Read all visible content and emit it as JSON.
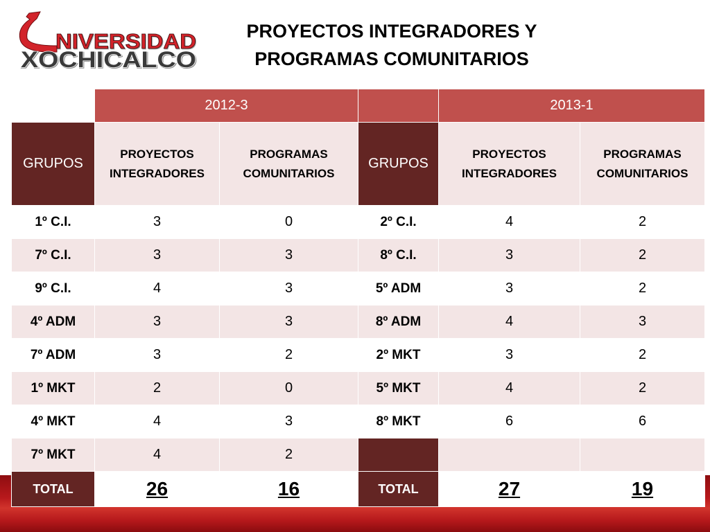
{
  "logo": {
    "line1": "NIVERSIDAD",
    "line2": "XOCHICALCO"
  },
  "title": {
    "line1": "PROYECTOS INTEGRADORES Y",
    "line2": "PROGRAMAS COMUNITARIOS"
  },
  "colors": {
    "header_red": "#c0504d",
    "group_maroon": "#632523",
    "band_pink": "#f3e5e5",
    "logo_red": "#d2232a"
  },
  "headers": {
    "groups": "GRUPOS",
    "projects": "PROYECTOS INTEGRADORES",
    "programs": "PROGRAMAS COMUNITARIOS"
  },
  "periods": [
    {
      "label": "2012-3",
      "groups": [
        {
          "name": "1º C.I.",
          "proyectos": 3,
          "programas": 0
        },
        {
          "name": "7º C.I.",
          "proyectos": 3,
          "programas": 3
        },
        {
          "name": "9º C.I.",
          "proyectos": 4,
          "programas": 3
        },
        {
          "name": "4º ADM",
          "proyectos": 3,
          "programas": 3
        },
        {
          "name": "7º ADM",
          "proyectos": 3,
          "programas": 2
        },
        {
          "name": "1º MKT",
          "proyectos": 2,
          "programas": 0
        },
        {
          "name": "4º MKT",
          "proyectos": 4,
          "programas": 3
        },
        {
          "name": "7º MKT",
          "proyectos": 4,
          "programas": 2
        }
      ],
      "total": {
        "label": "TOTAL",
        "proyectos": 26,
        "programas": 16
      }
    },
    {
      "label": "2013-1",
      "groups": [
        {
          "name": "2º C.I.",
          "proyectos": 4,
          "programas": 2
        },
        {
          "name": "8º C.I.",
          "proyectos": 3,
          "programas": 2
        },
        {
          "name": "5º ADM",
          "proyectos": 3,
          "programas": 2
        },
        {
          "name": "8º ADM",
          "proyectos": 4,
          "programas": 3
        },
        {
          "name": "2º MKT",
          "proyectos": 3,
          "programas": 2
        },
        {
          "name": "5º MKT",
          "proyectos": 4,
          "programas": 2
        },
        {
          "name": "8º MKT",
          "proyectos": 6,
          "programas": 6
        }
      ],
      "total": {
        "label": "TOTAL",
        "proyectos": 27,
        "programas": 19
      }
    }
  ]
}
